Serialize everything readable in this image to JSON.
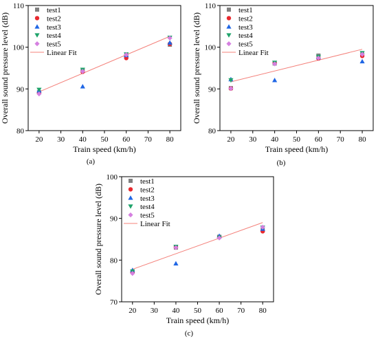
{
  "colors": {
    "test1": "#808080",
    "test2": "#e8292f",
    "test3": "#1f66e5",
    "test4": "#1fa36b",
    "test5": "#d580e0",
    "fit": "#f4807a"
  },
  "chart_data": [
    {
      "type": "scatter",
      "panel_label": "(a)",
      "xlabel": "Train speed (km/h)",
      "ylabel": "Overall sound pressure level (dB)",
      "xlim": [
        15,
        85
      ],
      "ylim": [
        80,
        110
      ],
      "xticks": [
        20,
        30,
        40,
        50,
        60,
        70,
        80
      ],
      "yticks": [
        80,
        90,
        100,
        110
      ],
      "legend_position": "top-left",
      "series": [
        {
          "name": "test1",
          "marker": "square",
          "x": [
            20,
            40,
            60,
            80
          ],
          "y": [
            89.2,
            94.4,
            98.0,
            100.6
          ]
        },
        {
          "name": "test2",
          "marker": "circle",
          "x": [
            20,
            40,
            60,
            80
          ],
          "y": [
            89.0,
            94.1,
            97.4,
            100.8
          ]
        },
        {
          "name": "test3",
          "marker": "triangle-up",
          "x": [
            20,
            40,
            60,
            80
          ],
          "y": [
            89.6,
            90.6,
            98.1,
            101.1
          ]
        },
        {
          "name": "test4",
          "marker": "triangle-down",
          "x": [
            20,
            40,
            60,
            80
          ],
          "y": [
            89.8,
            94.6,
            98.3,
            102.3
          ]
        },
        {
          "name": "test5",
          "marker": "diamond",
          "x": [
            20,
            40,
            60,
            80
          ],
          "y": [
            88.8,
            94.2,
            98.2,
            102.2
          ]
        }
      ],
      "fit": {
        "name": "Linear Fit",
        "x": [
          20,
          80
        ],
        "y": [
          89.3,
          102.6
        ]
      }
    },
    {
      "type": "scatter",
      "panel_label": "(b)",
      "xlabel": "Train speed (km/h)",
      "ylabel": "Overall sound pressure level (dB)",
      "xlim": [
        15,
        85
      ],
      "ylim": [
        80,
        110
      ],
      "xticks": [
        20,
        30,
        40,
        50,
        60,
        70,
        80
      ],
      "yticks": [
        80,
        90,
        100,
        110
      ],
      "legend_position": "top-left",
      "series": [
        {
          "name": "test1",
          "marker": "square",
          "x": [
            20,
            40,
            60,
            80
          ],
          "y": [
            90.2,
            96.1,
            98.0,
            98.2
          ]
        },
        {
          "name": "test2",
          "marker": "circle",
          "x": [
            20,
            40,
            60,
            80
          ],
          "y": [
            90.1,
            96.2,
            97.3,
            97.9
          ]
        },
        {
          "name": "test3",
          "marker": "triangle-up",
          "x": [
            20,
            40,
            60,
            80
          ],
          "y": [
            92.3,
            92.1,
            97.6,
            96.6
          ]
        },
        {
          "name": "test4",
          "marker": "triangle-down",
          "x": [
            20,
            40,
            60,
            80
          ],
          "y": [
            92.1,
            96.3,
            97.7,
            98.6
          ]
        },
        {
          "name": "test5",
          "marker": "diamond",
          "x": [
            20,
            40,
            60,
            80
          ],
          "y": [
            90.1,
            96.0,
            97.4,
            98.3
          ]
        }
      ],
      "fit": {
        "name": "Linear Fit",
        "x": [
          20,
          80
        ],
        "y": [
          91.7,
          99.5
        ]
      }
    },
    {
      "type": "scatter",
      "panel_label": "(c)",
      "xlabel": "Train speed (km/h)",
      "ylabel": "Overall sound pressure level (dB)",
      "xlim": [
        15,
        85
      ],
      "ylim": [
        70,
        100
      ],
      "xticks": [
        20,
        30,
        40,
        50,
        60,
        70,
        80
      ],
      "yticks": [
        70,
        80,
        90,
        100
      ],
      "legend_position": "top-left",
      "series": [
        {
          "name": "test1",
          "marker": "square",
          "x": [
            20,
            40,
            60,
            80
          ],
          "y": [
            77.2,
            83.0,
            85.6,
            87.2
          ]
        },
        {
          "name": "test2",
          "marker": "circle",
          "x": [
            20,
            40,
            60,
            80
          ],
          "y": [
            77.0,
            83.1,
            85.5,
            86.9
          ]
        },
        {
          "name": "test3",
          "marker": "triangle-up",
          "x": [
            20,
            40,
            60,
            80
          ],
          "y": [
            77.6,
            79.2,
            85.8,
            87.5
          ]
        },
        {
          "name": "test4",
          "marker": "triangle-down",
          "x": [
            20,
            40,
            60,
            80
          ],
          "y": [
            77.3,
            83.2,
            85.4,
            87.8
          ]
        },
        {
          "name": "test5",
          "marker": "diamond",
          "x": [
            20,
            40,
            60,
            80
          ],
          "y": [
            76.8,
            83.0,
            85.3,
            87.9
          ]
        }
      ],
      "fit": {
        "name": "Linear Fit",
        "x": [
          20,
          80
        ],
        "y": [
          77.8,
          89.0
        ]
      }
    }
  ]
}
